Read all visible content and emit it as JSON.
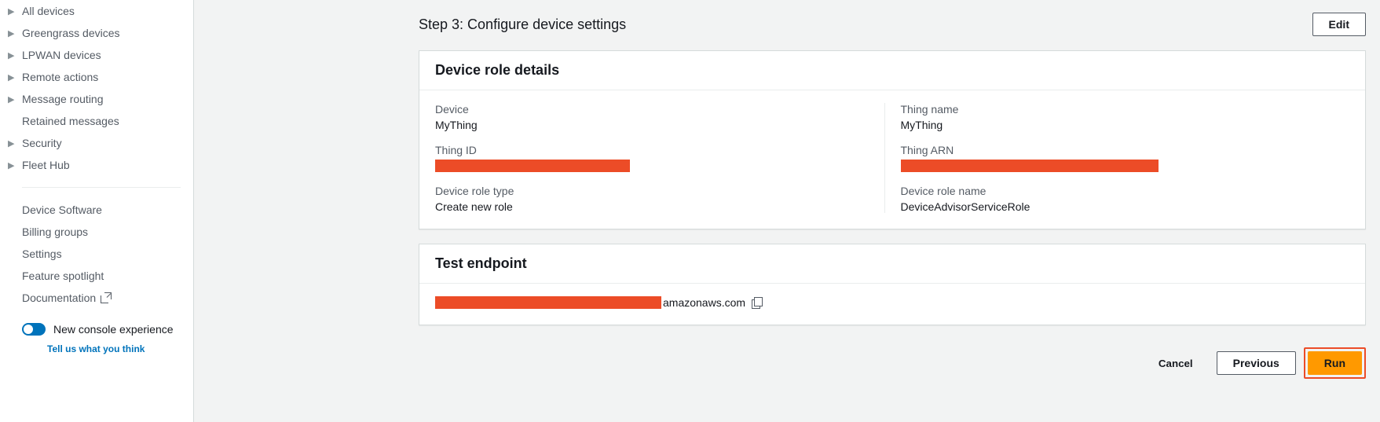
{
  "sidebar": {
    "nav": [
      {
        "label": "All devices",
        "expandable": true
      },
      {
        "label": "Greengrass devices",
        "expandable": true
      },
      {
        "label": "LPWAN devices",
        "expandable": true
      },
      {
        "label": "Remote actions",
        "expandable": true
      },
      {
        "label": "Message routing",
        "expandable": true
      },
      {
        "label": "Retained messages",
        "expandable": false
      },
      {
        "label": "Security",
        "expandable": true
      },
      {
        "label": "Fleet Hub",
        "expandable": true
      }
    ],
    "secondary": [
      {
        "label": "Device Software"
      },
      {
        "label": "Billing groups"
      },
      {
        "label": "Settings"
      },
      {
        "label": "Feature spotlight"
      },
      {
        "label": "Documentation",
        "external": true
      }
    ],
    "toggle_label": "New console experience",
    "feedback_label": "Tell us what you think"
  },
  "step": {
    "title": "Step 3: Configure device settings",
    "edit_label": "Edit"
  },
  "device_role": {
    "panel_title": "Device role details",
    "device_label": "Device",
    "device_value": "MyThing",
    "thing_name_label": "Thing name",
    "thing_name_value": "MyThing",
    "thing_id_label": "Thing ID",
    "thing_arn_label": "Thing ARN",
    "role_type_label": "Device role type",
    "role_type_value": "Create new role",
    "role_name_label": "Device role name",
    "role_name_value": "DeviceAdvisorServiceRole"
  },
  "endpoint": {
    "panel_title": "Test endpoint",
    "suffix": "amazonaws.com"
  },
  "actions": {
    "cancel_label": "Cancel",
    "previous_label": "Previous",
    "run_label": "Run"
  },
  "colors": {
    "redaction": "#ec4c27",
    "primary_button": "#ff9900",
    "link": "#0073bb",
    "background": "#f2f3f3",
    "panel_border": "#d5dbdb",
    "text_muted": "#545b64"
  }
}
